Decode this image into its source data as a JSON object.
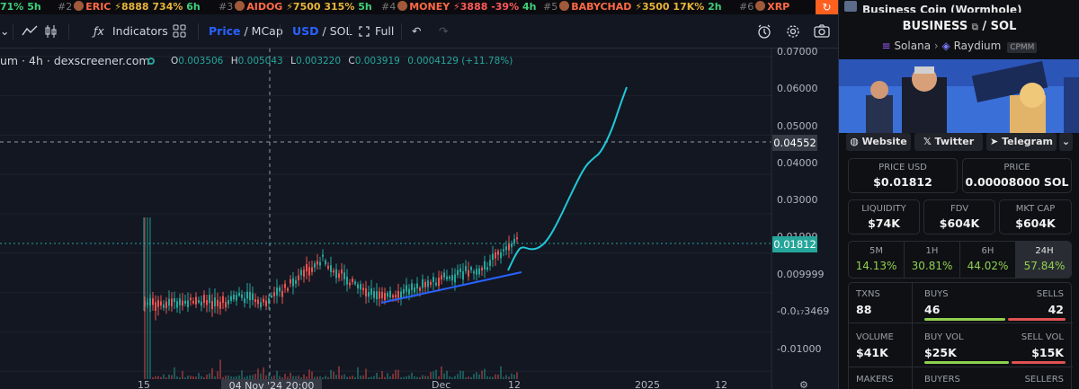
{
  "ticker": [
    {
      "rank": "",
      "name": "",
      "stats": "71%",
      "time": "5h"
    },
    {
      "rank": "#2",
      "name": "ERIC",
      "stats": "⚡8888 734%",
      "time": "6h"
    },
    {
      "rank": "#3",
      "name": "AIDOG",
      "stats": "⚡7500 315%",
      "time": "5h"
    },
    {
      "rank": "#4",
      "name": "MONEY",
      "stats": "⚡3888 -39%",
      "time": "4h"
    },
    {
      "rank": "#5",
      "name": "BABYCHAD",
      "stats": "⚡3500 17K%",
      "time": "2h"
    },
    {
      "rank": "#6",
      "name": "XRP",
      "stats": "",
      "time": ""
    }
  ],
  "toolbar": {
    "indicators": "Indicators",
    "price": "Price",
    "mcap": "MCap",
    "usd": "USD",
    "sol": "SOL",
    "full": "Full"
  },
  "chart": {
    "legend": "um · 4h · dexscreener.com",
    "ohlc": {
      "o_label": "O",
      "o": "0.003506",
      "h_label": "H",
      "h": "0.005043",
      "l_label": "L",
      "l": "0.003220",
      "c_label": "C",
      "c": "0.003919",
      "change": "0.0004129 (+11.78%)"
    },
    "crosshair_date": "04 Nov '24   20:00",
    "crosshair_price": "0.04552",
    "last_price": "0.01812",
    "price_labels": [
      "0.07000",
      "0.06000",
      "0.05000",
      "0.04000",
      "0.03000",
      "0.01999",
      "0.009999",
      "-0.0₁₇3469",
      "-0.01000"
    ],
    "date_labels": [
      "15",
      "Dec",
      "12",
      "2025",
      "12"
    ]
  },
  "chart_data": {
    "type": "line",
    "title": "",
    "xlabel": "",
    "ylabel": "",
    "ylim": [
      -0.012,
      0.072
    ],
    "series": [
      {
        "x": [
          "Nov 15",
          "Nov 22",
          "Dec 1",
          "Dec 8",
          "Dec 12",
          "Dec 20",
          "Dec 28",
          "Jan 1"
        ],
        "y": [
          0.0015,
          0.0019,
          0.0023,
          0.0032,
          0.0081,
          0.018,
          0.04,
          0.061
        ]
      }
    ]
  },
  "panel": {
    "token_name": "Business Coin (Wormhole)",
    "pair_base": "BUSINESS",
    "pair_quote": "SOL",
    "chain": "Solana",
    "dex": "Raydium",
    "pool_type": "CPMM",
    "links": {
      "website": "Website",
      "twitter": "Twitter",
      "telegram": "Telegram"
    },
    "price_usd_label": "PRICE USD",
    "price_usd": "$0.01812",
    "price_label": "PRICE",
    "price_sol": "0.00008000 SOL",
    "liquidity_label": "LIQUIDITY",
    "liquidity": "$74K",
    "fdv_label": "FDV",
    "fdv": "$604K",
    "mcap_label": "MKT CAP",
    "mcap": "$604K",
    "timeframes": [
      {
        "label": "5M",
        "value": "14.13%"
      },
      {
        "label": "1H",
        "value": "30.81%"
      },
      {
        "label": "6H",
        "value": "44.02%"
      },
      {
        "label": "24H",
        "value": "57.84%"
      }
    ],
    "txns_label": "TXNS",
    "txns": "88",
    "buys_label": "BUYS",
    "buys": "46",
    "sells_label": "SELLS",
    "sells": "42",
    "volume_label": "VOLUME",
    "volume": "$41K",
    "buy_vol_label": "BUY VOL",
    "buy_vol": "$25K",
    "sell_vol_label": "SELL VOL",
    "sell_vol": "$15K",
    "makers_label": "MAKERS",
    "buyers_label": "BUYERS",
    "sellers_label": "SELLERS",
    "colors": {
      "green": "#8fd14f",
      "red": "#e05252",
      "accent": "#2962ff"
    }
  }
}
